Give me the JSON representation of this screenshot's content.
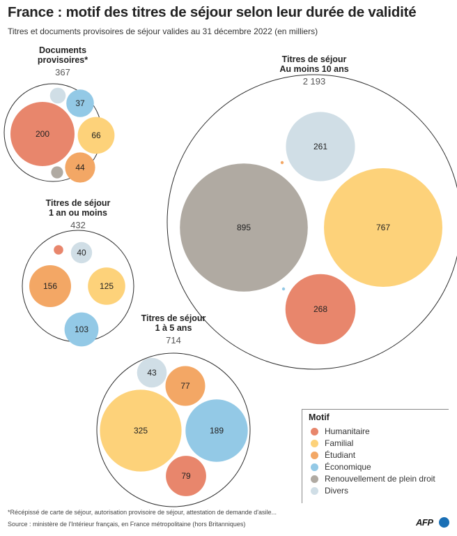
{
  "title": "France : motif des titres de séjour selon leur durée de validité",
  "subtitle": "Titres et documents provisoires de séjour valides au 31 décembre 2022 (en milliers)",
  "footnote": "*Récépissé de carte de séjour, autorisation provisoire de séjour, attestation de demande d'asile...",
  "source": "Source : ministère de l'Intérieur français, en France métropolitaine (hors Britanniques)",
  "logo_text": "AFP",
  "colors": {
    "Humanitaire": "#e8866c",
    "Familial": "#fdd27a",
    "Étudiant": "#f3a765",
    "Économique": "#93c9e6",
    "Renouvellement de plein droit": "#b0aaa2",
    "Divers": "#d0dee6"
  },
  "legend": {
    "title": "Motif",
    "items": [
      "Humanitaire",
      "Familial",
      "Étudiant",
      "Économique",
      "Renouvellement de plein droit",
      "Divers"
    ]
  },
  "chart_data": [
    {
      "type": "bubble",
      "group_title": [
        "Documents",
        "provisoires*"
      ],
      "total": "367",
      "bubbles": [
        {
          "motif": "Humanitaire",
          "value": 200,
          "label": "200"
        },
        {
          "motif": "Économique",
          "value": 37,
          "label": "37"
        },
        {
          "motif": "Familial",
          "value": 66,
          "label": "66"
        },
        {
          "motif": "Étudiant",
          "value": 44,
          "label": "44"
        },
        {
          "motif": "Divers",
          "value": 12,
          "label": ""
        },
        {
          "motif": "Renouvellement de plein droit",
          "value": 7,
          "label": ""
        }
      ]
    },
    {
      "type": "bubble",
      "group_title": [
        "Titres de séjour",
        "Au moins 10 ans"
      ],
      "total": "2 193",
      "bubbles": [
        {
          "motif": "Renouvellement de plein droit",
          "value": 895,
          "label": "895"
        },
        {
          "motif": "Familial",
          "value": 767,
          "label": "767"
        },
        {
          "motif": "Humanitaire",
          "value": 268,
          "label": "268"
        },
        {
          "motif": "Divers",
          "value": 261,
          "label": "261"
        },
        {
          "motif": "Étudiant",
          "value": 1,
          "label": ""
        },
        {
          "motif": "Économique",
          "value": 1,
          "label": ""
        }
      ]
    },
    {
      "type": "bubble",
      "group_title": [
        "Titres de séjour",
        "1 an ou moins"
      ],
      "total": "432",
      "bubbles": [
        {
          "motif": "Étudiant",
          "value": 156,
          "label": "156"
        },
        {
          "motif": "Familial",
          "value": 125,
          "label": "125"
        },
        {
          "motif": "Économique",
          "value": 103,
          "label": "103"
        },
        {
          "motif": "Divers",
          "value": 40,
          "label": "40"
        },
        {
          "motif": "Humanitaire",
          "value": 8,
          "label": ""
        }
      ]
    },
    {
      "type": "bubble",
      "group_title": [
        "Titres de séjour",
        "1 à 5 ans"
      ],
      "total": "714",
      "bubbles": [
        {
          "motif": "Familial",
          "value": 325,
          "label": "325"
        },
        {
          "motif": "Économique",
          "value": 189,
          "label": "189"
        },
        {
          "motif": "Humanitaire",
          "value": 79,
          "label": "79"
        },
        {
          "motif": "Étudiant",
          "value": 77,
          "label": "77"
        },
        {
          "motif": "Divers",
          "value": 43,
          "label": "43"
        }
      ]
    }
  ]
}
